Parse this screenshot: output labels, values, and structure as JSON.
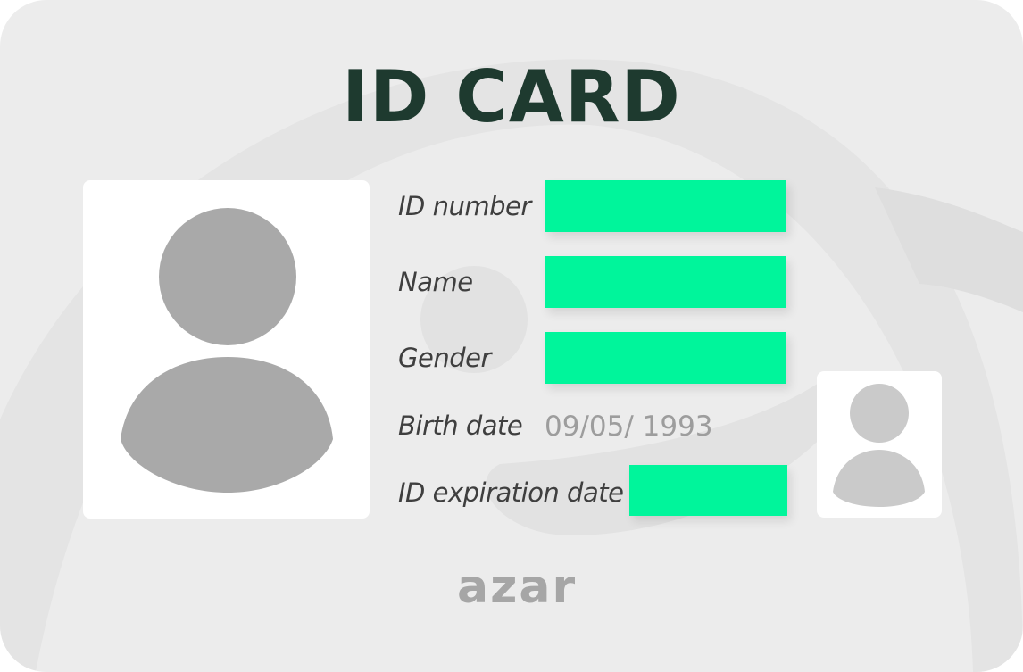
{
  "card": {
    "title": "ID CARD",
    "fields": [
      {
        "label": "ID number"
      },
      {
        "label": "Name"
      },
      {
        "label": "Gender"
      },
      {
        "label": "Birth date",
        "value": "09/05/ 1993"
      },
      {
        "label": "ID expiration date"
      }
    ],
    "logo": "azar",
    "colors": {
      "title": "#1e3a2f",
      "redaction": "#00f59b",
      "background": "#ececec",
      "avatar": "#a9a9a9"
    }
  }
}
